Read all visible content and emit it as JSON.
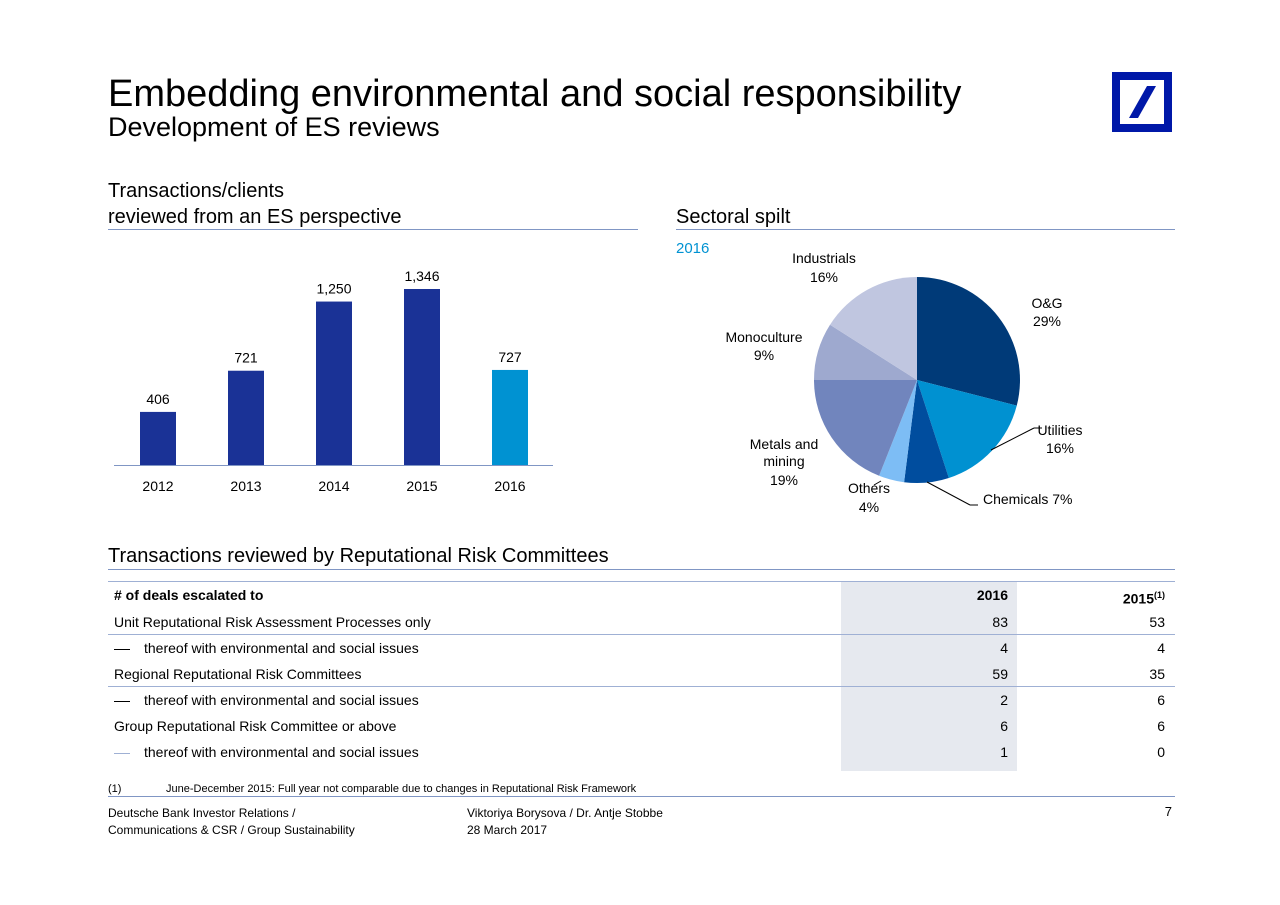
{
  "header": {
    "title": "Embedding environmental and social responsibility",
    "subtitle": "Development of ES reviews"
  },
  "colors": {
    "brand_blue": "#0018a8",
    "bar_dark": "#1a3296",
    "bar_highlight": "#0092d2",
    "rule": "#8096c4"
  },
  "left_section": {
    "heading_line1": "Transactions/clients",
    "heading_line2": "reviewed from an ES perspective"
  },
  "right_section": {
    "heading": "Sectoral spilt",
    "year_label": "2016"
  },
  "chart_data": [
    {
      "type": "bar",
      "categories": [
        "2012",
        "2013",
        "2014",
        "2015",
        "2016"
      ],
      "values": [
        406,
        721,
        1250,
        1346,
        727
      ],
      "value_labels": [
        "406",
        "721",
        "1,250",
        "1,346",
        "727"
      ],
      "bar_colors": [
        "#1a3296",
        "#1a3296",
        "#1a3296",
        "#1a3296",
        "#0092d2"
      ],
      "ylim": [
        0,
        1346
      ],
      "grid": false
    },
    {
      "type": "pie",
      "title": "2016",
      "slices": [
        {
          "label": "O&G",
          "pct_label": "29%",
          "value": 29,
          "color": "#003a78"
        },
        {
          "label": "Utilities",
          "pct_label": "16%",
          "value": 16,
          "color": "#0091d1"
        },
        {
          "label": "Chemicals",
          "pct_label": "7%",
          "value": 7,
          "color": "#004d9e"
        },
        {
          "label": "Others",
          "pct_label": "4%",
          "value": 4,
          "color": "#7dbdf5"
        },
        {
          "label": "Metals and mining",
          "pct_label": "19%",
          "value": 19,
          "color": "#7185bd"
        },
        {
          "label": "Monoculture",
          "pct_label": "9%",
          "value": 9,
          "color": "#9ea9cf"
        },
        {
          "label": "Industrials",
          "pct_label": "16%",
          "value": 16,
          "color": "#c0c6e0"
        }
      ]
    }
  ],
  "pie_labels": {
    "industrials": [
      "Industrials",
      "16%"
    ],
    "og": [
      "O&G",
      "29%"
    ],
    "monoculture": [
      "Monoculture",
      "9%"
    ],
    "utilities": [
      "Utilities",
      "16%"
    ],
    "metals": [
      "Metals and",
      "mining",
      "19%"
    ],
    "others": [
      "Others",
      "4%"
    ],
    "chemicals": "Chemicals 7%"
  },
  "table": {
    "heading": "Transactions reviewed by Reputational Risk Committees",
    "columns": [
      "# of deals escalated to",
      "2016",
      "2015"
    ],
    "col2_superscript": "(1)",
    "rows": [
      {
        "label": "Unit Reputational Risk Assessment Processes only",
        "v2016": "83",
        "v2015": "53",
        "sub": false
      },
      {
        "label": "thereof with environmental and social issues",
        "v2016": "4",
        "v2015": "4",
        "sub": true
      },
      {
        "label": "Regional Reputational Risk Committees",
        "v2016": "59",
        "v2015": "35",
        "sub": false
      },
      {
        "label": "thereof with environmental and social issues",
        "v2016": "2",
        "v2015": "6",
        "sub": true
      },
      {
        "label": "Group Reputational Risk Committee or above",
        "v2016": "6",
        "v2015": "6",
        "sub": false
      },
      {
        "label": "thereof with environmental and social issues",
        "v2016": "1",
        "v2015": "0",
        "sub": true
      }
    ]
  },
  "footnote": {
    "marker": "(1)",
    "text": "June-December 2015: Full year not comparable due to changes in Reputational Risk Framework"
  },
  "footer": {
    "left_line1": "Deutsche Bank Investor Relations /",
    "left_line2": "Communications & CSR / Group Sustainability",
    "center_line1": "Viktoriya Borysova / Dr. Antje Stobbe",
    "center_line2": "28 March 2017",
    "page_number": "7"
  }
}
